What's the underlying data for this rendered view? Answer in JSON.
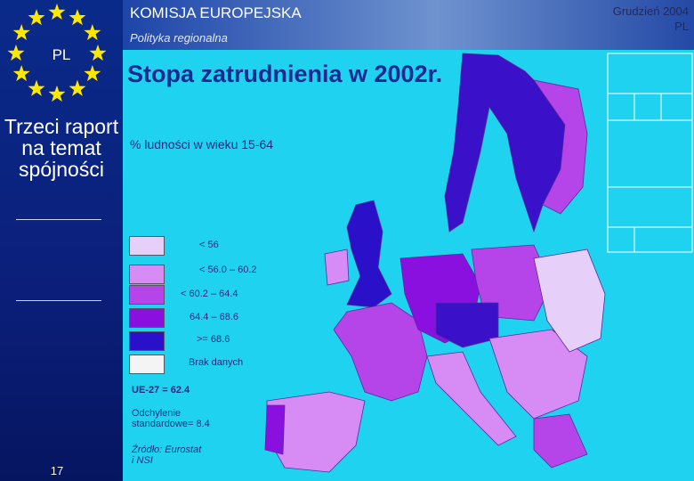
{
  "header": {
    "organization": "KOMISJA EUROPEJSKA",
    "unit": "Polityka regionalna",
    "date": "Grudzień 2004",
    "country": "PL"
  },
  "sidebar": {
    "badge": "PL",
    "report_title": "Trzeci raport na temat spójności",
    "page_number": "17"
  },
  "map": {
    "title": "Stopa zatrudnienia w 2002r.",
    "subtitle": "% ludności w wieku 15-64",
    "legend": [
      {
        "label": "< 56",
        "color": "#e6d0fa"
      },
      {
        "label": "< 56.0 – 60.2",
        "color": "#d78cf5"
      },
      {
        "label": "< 60.2 – 64.4",
        "color": "#b545e8"
      },
      {
        "label": "64.4 – 68.6",
        "color": "#8a10e0"
      },
      {
        "label": ">= 68.6",
        "color": "#2a10c8"
      },
      {
        "label": "Brak danych",
        "color": "#f4f4f4"
      }
    ],
    "average": "UE-27 = 62.4",
    "deviation": "Odchylenie standardowe= 8.4",
    "source": "Źródło: Eurostat i NSI"
  }
}
